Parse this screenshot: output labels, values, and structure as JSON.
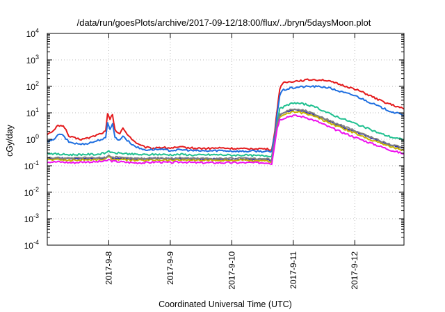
{
  "chart_data": {
    "type": "line",
    "title": "/data/run/goesPlots/archive/2017-09-12/18:00/flux/../bryn/5daysMoon.plot",
    "xlabel": "Coordinated Universal Time (UTC)",
    "ylabel": "cGy/day",
    "y_scale": "log",
    "ylim": [
      0.0001,
      10000
    ],
    "xlim": [
      0,
      5.8
    ],
    "grid": true,
    "legend": "none",
    "x_ticks": [
      {
        "x": 1,
        "label": "2017-9-8"
      },
      {
        "x": 2,
        "label": "2017-9-9"
      },
      {
        "x": 3,
        "label": "2017-9-10"
      },
      {
        "x": 4,
        "label": "2017-9-11"
      },
      {
        "x": 5,
        "label": "2017-9-12"
      }
    ],
    "y_ticks": [
      {
        "exp": -4,
        "base": "10",
        "sup": "-4"
      },
      {
        "exp": -3,
        "base": "10",
        "sup": "-3"
      },
      {
        "exp": -2,
        "base": "10",
        "sup": "-2"
      },
      {
        "exp": -1,
        "base": "10",
        "sup": "-1"
      },
      {
        "exp": 0,
        "base": "10",
        "sup": "0"
      },
      {
        "exp": 1,
        "base": "10",
        "sup": "1"
      },
      {
        "exp": 2,
        "base": "10",
        "sup": "2"
      },
      {
        "exp": 3,
        "base": "10",
        "sup": "3"
      },
      {
        "exp": 4,
        "base": "10",
        "sup": "4"
      }
    ],
    "series": [
      {
        "color": "#e41a1c",
        "points": [
          [
            0,
            1.6
          ],
          [
            0.08,
            1.8
          ],
          [
            0.15,
            3.0
          ],
          [
            0.22,
            3.5
          ],
          [
            0.28,
            2.9
          ],
          [
            0.35,
            1.3
          ],
          [
            0.45,
            1.1
          ],
          [
            0.55,
            1.0
          ],
          [
            0.65,
            1.1
          ],
          [
            0.75,
            1.3
          ],
          [
            0.85,
            1.6
          ],
          [
            0.95,
            2.0
          ],
          [
            0.98,
            9.0
          ],
          [
            1.02,
            5.5
          ],
          [
            1.06,
            9.0
          ],
          [
            1.1,
            2.2
          ],
          [
            1.18,
            1.6
          ],
          [
            1.23,
            2.6
          ],
          [
            1.3,
            1.6
          ],
          [
            1.4,
            0.9
          ],
          [
            1.5,
            0.6
          ],
          [
            1.6,
            0.5
          ],
          [
            1.7,
            0.45
          ],
          [
            1.8,
            0.5
          ],
          [
            2.0,
            0.47
          ],
          [
            2.2,
            0.5
          ],
          [
            2.4,
            0.46
          ],
          [
            2.6,
            0.45
          ],
          [
            2.8,
            0.47
          ],
          [
            3.0,
            0.45
          ],
          [
            3.2,
            0.43
          ],
          [
            3.4,
            0.45
          ],
          [
            3.6,
            0.42
          ],
          [
            3.65,
            0.4
          ],
          [
            3.7,
            2.0
          ],
          [
            3.74,
            15
          ],
          [
            3.78,
            80
          ],
          [
            3.82,
            130
          ],
          [
            3.95,
            150
          ],
          [
            4.1,
            165
          ],
          [
            4.3,
            180
          ],
          [
            4.5,
            175
          ],
          [
            4.6,
            150
          ],
          [
            4.8,
            110
          ],
          [
            5.0,
            80
          ],
          [
            5.2,
            50
          ],
          [
            5.4,
            30
          ],
          [
            5.6,
            20
          ],
          [
            5.8,
            14
          ]
        ]
      },
      {
        "color": "#1f6fe0",
        "points": [
          [
            0,
            0.8
          ],
          [
            0.08,
            0.9
          ],
          [
            0.15,
            1.3
          ],
          [
            0.22,
            1.6
          ],
          [
            0.28,
            1.2
          ],
          [
            0.35,
            0.8
          ],
          [
            0.45,
            0.7
          ],
          [
            0.55,
            0.65
          ],
          [
            0.65,
            0.7
          ],
          [
            0.75,
            0.8
          ],
          [
            0.85,
            0.95
          ],
          [
            0.95,
            1.1
          ],
          [
            0.98,
            4.0
          ],
          [
            1.02,
            2.5
          ],
          [
            1.06,
            4.0
          ],
          [
            1.1,
            1.2
          ],
          [
            1.18,
            0.9
          ],
          [
            1.23,
            1.4
          ],
          [
            1.3,
            0.9
          ],
          [
            1.4,
            0.6
          ],
          [
            1.5,
            0.45
          ],
          [
            1.6,
            0.4
          ],
          [
            1.8,
            0.42
          ],
          [
            2.0,
            0.38
          ],
          [
            2.2,
            0.4
          ],
          [
            2.4,
            0.37
          ],
          [
            2.6,
            0.36
          ],
          [
            2.8,
            0.38
          ],
          [
            3.0,
            0.36
          ],
          [
            3.2,
            0.35
          ],
          [
            3.4,
            0.36
          ],
          [
            3.6,
            0.34
          ],
          [
            3.65,
            0.33
          ],
          [
            3.7,
            1.5
          ],
          [
            3.74,
            10
          ],
          [
            3.78,
            45
          ],
          [
            3.82,
            70
          ],
          [
            3.95,
            85
          ],
          [
            4.1,
            95
          ],
          [
            4.3,
            100
          ],
          [
            4.5,
            95
          ],
          [
            4.6,
            85
          ],
          [
            4.8,
            60
          ],
          [
            5.0,
            45
          ],
          [
            5.2,
            28
          ],
          [
            5.4,
            17
          ],
          [
            5.6,
            11
          ],
          [
            5.8,
            8
          ]
        ]
      },
      {
        "color": "#20c090",
        "points": [
          [
            0,
            0.3
          ],
          [
            0.2,
            0.27
          ],
          [
            0.4,
            0.26
          ],
          [
            0.6,
            0.27
          ],
          [
            0.8,
            0.27
          ],
          [
            0.95,
            0.3
          ],
          [
            1.0,
            0.38
          ],
          [
            1.05,
            0.3
          ],
          [
            1.2,
            0.3
          ],
          [
            1.4,
            0.27
          ],
          [
            1.6,
            0.26
          ],
          [
            1.8,
            0.27
          ],
          [
            2.0,
            0.26
          ],
          [
            2.2,
            0.27
          ],
          [
            2.4,
            0.25
          ],
          [
            2.6,
            0.26
          ],
          [
            2.8,
            0.26
          ],
          [
            3.0,
            0.25
          ],
          [
            3.2,
            0.25
          ],
          [
            3.4,
            0.24
          ],
          [
            3.6,
            0.24
          ],
          [
            3.65,
            0.23
          ],
          [
            3.7,
            1.0
          ],
          [
            3.74,
            5
          ],
          [
            3.78,
            14
          ],
          [
            3.9,
            19
          ],
          [
            4.0,
            24
          ],
          [
            4.2,
            21
          ],
          [
            4.4,
            15
          ],
          [
            4.6,
            9
          ],
          [
            4.8,
            6
          ],
          [
            5.0,
            4
          ],
          [
            5.2,
            2.6
          ],
          [
            5.4,
            1.7
          ],
          [
            5.6,
            1.2
          ],
          [
            5.8,
            0.95
          ]
        ]
      },
      {
        "color": "#2b2bb8",
        "points": [
          [
            0,
            0.19
          ],
          [
            0.2,
            0.19
          ],
          [
            0.4,
            0.18
          ],
          [
            0.6,
            0.19
          ],
          [
            0.8,
            0.19
          ],
          [
            0.95,
            0.2
          ],
          [
            1.0,
            0.24
          ],
          [
            1.05,
            0.2
          ],
          [
            1.2,
            0.19
          ],
          [
            1.4,
            0.18
          ],
          [
            1.6,
            0.18
          ],
          [
            1.8,
            0.19
          ],
          [
            2.0,
            0.18
          ],
          [
            2.2,
            0.19
          ],
          [
            2.4,
            0.18
          ],
          [
            2.6,
            0.18
          ],
          [
            2.8,
            0.18
          ],
          [
            3.0,
            0.18
          ],
          [
            3.2,
            0.18
          ],
          [
            3.4,
            0.17
          ],
          [
            3.6,
            0.17
          ],
          [
            3.65,
            0.16
          ],
          [
            3.7,
            0.9
          ],
          [
            3.74,
            4
          ],
          [
            3.78,
            8
          ],
          [
            3.9,
            11
          ],
          [
            4.0,
            13
          ],
          [
            4.2,
            11
          ],
          [
            4.4,
            7.5
          ],
          [
            4.6,
            4.5
          ],
          [
            4.8,
            3
          ],
          [
            5.0,
            2
          ],
          [
            5.2,
            1.3
          ],
          [
            5.4,
            0.85
          ],
          [
            5.6,
            0.6
          ],
          [
            5.8,
            0.45
          ]
        ]
      },
      {
        "color": "#c8b400",
        "points": [
          [
            0,
            0.17
          ],
          [
            0.2,
            0.17
          ],
          [
            0.4,
            0.16
          ],
          [
            0.6,
            0.17
          ],
          [
            0.8,
            0.17
          ],
          [
            0.95,
            0.18
          ],
          [
            1.0,
            0.22
          ],
          [
            1.05,
            0.18
          ],
          [
            1.2,
            0.17
          ],
          [
            1.4,
            0.16
          ],
          [
            1.6,
            0.16
          ],
          [
            1.8,
            0.17
          ],
          [
            2.0,
            0.16
          ],
          [
            2.2,
            0.17
          ],
          [
            2.4,
            0.16
          ],
          [
            2.6,
            0.16
          ],
          [
            2.8,
            0.16
          ],
          [
            3.0,
            0.16
          ],
          [
            3.2,
            0.16
          ],
          [
            3.4,
            0.15
          ],
          [
            3.6,
            0.15
          ],
          [
            3.65,
            0.14
          ],
          [
            3.7,
            0.8
          ],
          [
            3.74,
            3.5
          ],
          [
            3.78,
            7
          ],
          [
            3.9,
            9.5
          ],
          [
            4.0,
            11
          ],
          [
            4.2,
            9.5
          ],
          [
            4.4,
            6.5
          ],
          [
            4.6,
            4
          ],
          [
            4.8,
            2.6
          ],
          [
            5.0,
            1.7
          ],
          [
            5.2,
            1.1
          ],
          [
            5.4,
            0.75
          ],
          [
            5.6,
            0.52
          ],
          [
            5.8,
            0.38
          ]
        ]
      },
      {
        "color": "#808080",
        "points": [
          [
            0,
            0.2
          ],
          [
            0.2,
            0.2
          ],
          [
            0.4,
            0.19
          ],
          [
            0.6,
            0.2
          ],
          [
            0.8,
            0.2
          ],
          [
            0.95,
            0.21
          ],
          [
            1.0,
            0.25
          ],
          [
            1.05,
            0.21
          ],
          [
            1.2,
            0.2
          ],
          [
            1.4,
            0.19
          ],
          [
            1.6,
            0.19
          ],
          [
            1.8,
            0.2
          ],
          [
            2.0,
            0.19
          ],
          [
            2.2,
            0.2
          ],
          [
            2.4,
            0.19
          ],
          [
            2.6,
            0.19
          ],
          [
            2.8,
            0.19
          ],
          [
            3.0,
            0.19
          ],
          [
            3.2,
            0.19
          ],
          [
            3.4,
            0.18
          ],
          [
            3.6,
            0.18
          ],
          [
            3.65,
            0.17
          ],
          [
            3.7,
            0.95
          ],
          [
            3.74,
            4.2
          ],
          [
            3.78,
            8.5
          ],
          [
            3.9,
            12
          ],
          [
            4.0,
            14
          ],
          [
            4.2,
            12
          ],
          [
            4.4,
            8
          ],
          [
            4.6,
            5
          ],
          [
            4.8,
            3.2
          ],
          [
            5.0,
            2.1
          ],
          [
            5.2,
            1.4
          ],
          [
            5.4,
            0.9
          ],
          [
            5.6,
            0.62
          ],
          [
            5.8,
            0.47
          ]
        ]
      },
      {
        "color": "#ee10ee",
        "points": [
          [
            0,
            0.14
          ],
          [
            0.2,
            0.14
          ],
          [
            0.4,
            0.13
          ],
          [
            0.6,
            0.14
          ],
          [
            0.8,
            0.14
          ],
          [
            0.95,
            0.15
          ],
          [
            1.0,
            0.17
          ],
          [
            1.05,
            0.15
          ],
          [
            1.2,
            0.14
          ],
          [
            1.4,
            0.13
          ],
          [
            1.6,
            0.13
          ],
          [
            1.8,
            0.14
          ],
          [
            2.0,
            0.13
          ],
          [
            2.2,
            0.14
          ],
          [
            2.4,
            0.13
          ],
          [
            2.6,
            0.13
          ],
          [
            2.8,
            0.13
          ],
          [
            3.0,
            0.13
          ],
          [
            3.2,
            0.13
          ],
          [
            3.4,
            0.13
          ],
          [
            3.6,
            0.13
          ],
          [
            3.65,
            0.12
          ],
          [
            3.7,
            0.7
          ],
          [
            3.74,
            2.8
          ],
          [
            3.78,
            5.5
          ],
          [
            3.9,
            7
          ],
          [
            4.0,
            8
          ],
          [
            4.2,
            6.8
          ],
          [
            4.4,
            4.6
          ],
          [
            4.6,
            2.8
          ],
          [
            4.8,
            1.8
          ],
          [
            5.0,
            1.2
          ],
          [
            5.2,
            0.8
          ],
          [
            5.4,
            0.55
          ],
          [
            5.6,
            0.38
          ],
          [
            5.8,
            0.28
          ]
        ]
      }
    ]
  }
}
